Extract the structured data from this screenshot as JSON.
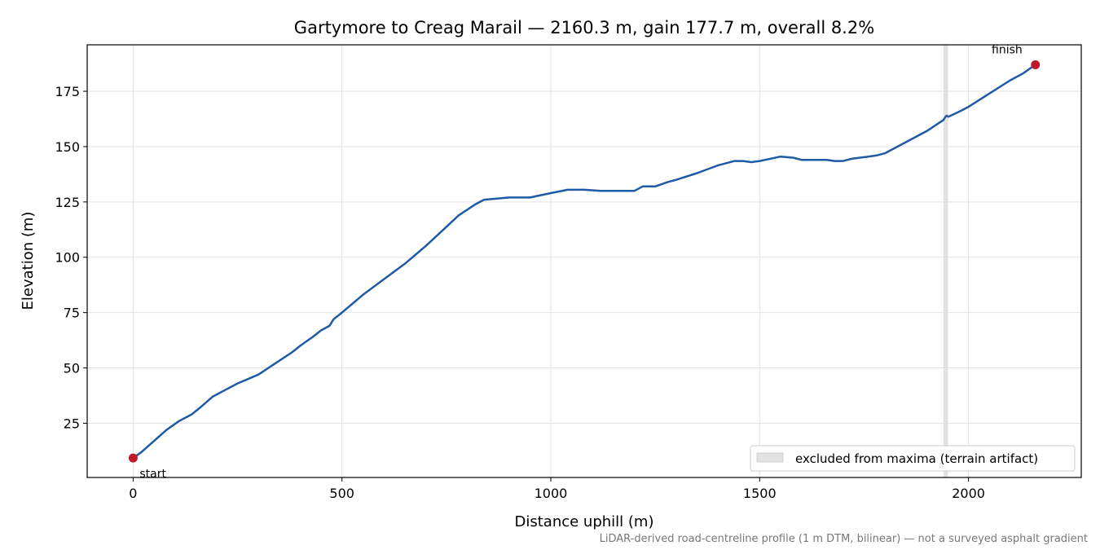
{
  "chart_data": {
    "type": "line",
    "title": "Gartymore to Creag Marail — 2160.3 m, gain 177.7 m, overall 8.2%",
    "xlabel": "Distance uphill (m)",
    "ylabel": "Elevation (m)",
    "xlim": [
      -110,
      2270
    ],
    "ylim": [
      0.5,
      196
    ],
    "x_ticks": [
      0,
      500,
      1000,
      1500,
      2000
    ],
    "y_ticks": [
      25,
      50,
      75,
      100,
      125,
      150,
      175
    ],
    "x_tick_labels": [
      "0",
      "500",
      "1000",
      "1500",
      "2000"
    ],
    "y_tick_labels": [
      "25",
      "50",
      "75",
      "100",
      "125",
      "150",
      "175"
    ],
    "grid": true,
    "colors": {
      "line": "#1f5aa6",
      "marker": "#c0182b",
      "band": "#d6d6d6"
    },
    "series": [
      {
        "x": [
          0,
          20,
          50,
          80,
          110,
          140,
          160,
          190,
          220,
          250,
          300,
          340,
          380,
          400,
          430,
          450,
          470,
          480,
          500,
          550,
          600,
          650,
          700,
          740,
          780,
          820,
          840,
          870,
          900,
          950,
          1000,
          1040,
          1080,
          1120,
          1160,
          1200,
          1215,
          1220,
          1250,
          1280,
          1300,
          1350,
          1400,
          1440,
          1460,
          1480,
          1500,
          1550,
          1580,
          1600,
          1630,
          1660,
          1680,
          1700,
          1720,
          1740,
          1760,
          1780,
          1800,
          1810,
          1850,
          1900,
          1940,
          1945,
          1948,
          1952,
          1980,
          2000,
          2050,
          2100,
          2130,
          2160.3
        ],
        "y": [
          9.3,
          12,
          17,
          22,
          26,
          29,
          32,
          37,
          40,
          43,
          47,
          52,
          57,
          60,
          64,
          67,
          69,
          72,
          75,
          83,
          90,
          97,
          105,
          112,
          119,
          124,
          126,
          126.5,
          127,
          127,
          129,
          130.5,
          130.5,
          130,
          130,
          130,
          131.5,
          132,
          132,
          134,
          135,
          138,
          141.5,
          143.5,
          143.5,
          143,
          143.5,
          145.5,
          145,
          144,
          144,
          144,
          143.5,
          143.5,
          144.5,
          145,
          145.5,
          146,
          147,
          148,
          152,
          157,
          162,
          163.5,
          164,
          163.5,
          166,
          168,
          174,
          180,
          183,
          187
        ]
      }
    ],
    "markers": [
      {
        "label": "start",
        "x": 0,
        "y": 9.3
      },
      {
        "label": "finish",
        "x": 2160.3,
        "y": 187
      }
    ],
    "excluded_band": {
      "x_range": [
        1940,
        1951
      ],
      "legend_label": "excluded from maxima (terrain artifact)"
    },
    "legend_position": "lower-right",
    "footnote": "LiDAR-derived road-centreline profile (1 m DTM, bilinear) — not a surveyed asphalt gradient"
  }
}
